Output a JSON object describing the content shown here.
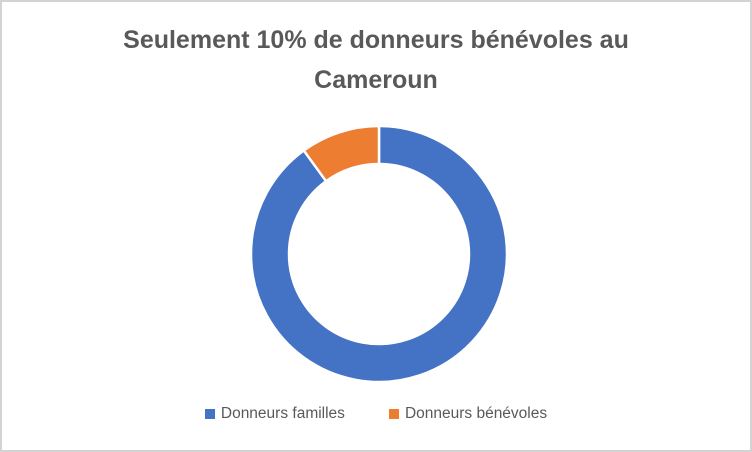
{
  "frame": {
    "background": "#FFFFFF",
    "border_color": "#D3D3D3"
  },
  "chart_data": {
    "type": "pie",
    "subtype": "donut",
    "title": "Seulement 10% de donneurs bénévoles au Cameroun",
    "title_lines": [
      "Seulement 10% de donneurs bénévoles au",
      "Cameroun"
    ],
    "title_color": "#595959",
    "categories": [
      "Donneurs familles",
      "Donneurs bénévoles"
    ],
    "values": [
      90,
      10
    ],
    "colors": [
      "#4472C4",
      "#ED7D31"
    ],
    "units": "percent",
    "start_angle_deg": 0,
    "direction": "clockwise",
    "hole_ratio": 0.7,
    "slice_border_color": "#FFFFFF",
    "legend_position": "bottom",
    "legend_text_color": "#595959",
    "grid": false
  }
}
